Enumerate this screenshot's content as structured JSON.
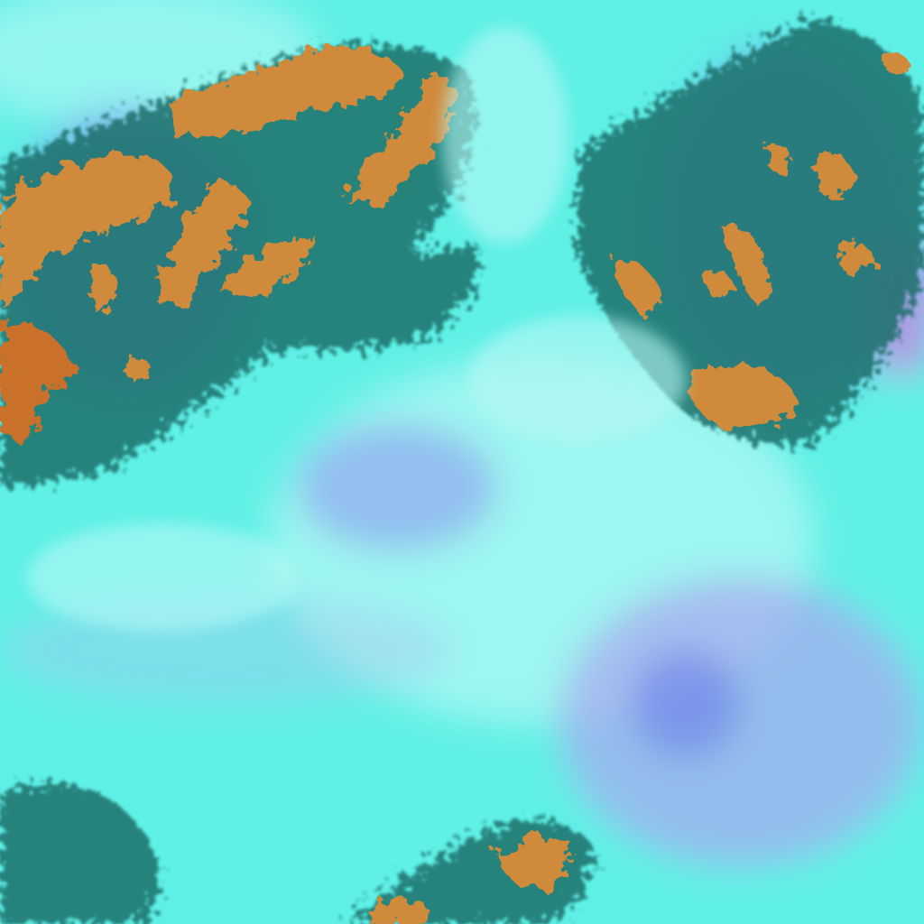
{
  "image": {
    "kind": "false-color satellite imagery",
    "colors": {
      "base_cyan": "#5ff0e6",
      "pale_cyan": "#b8f8f4",
      "lavender": "#a9a6ee",
      "blue": "#6f86e8",
      "dark_teal": "#1f6f6a",
      "orange": "#d08a3a",
      "deep_orange": "#c9702a",
      "magenta": "#c98ae0"
    }
  }
}
